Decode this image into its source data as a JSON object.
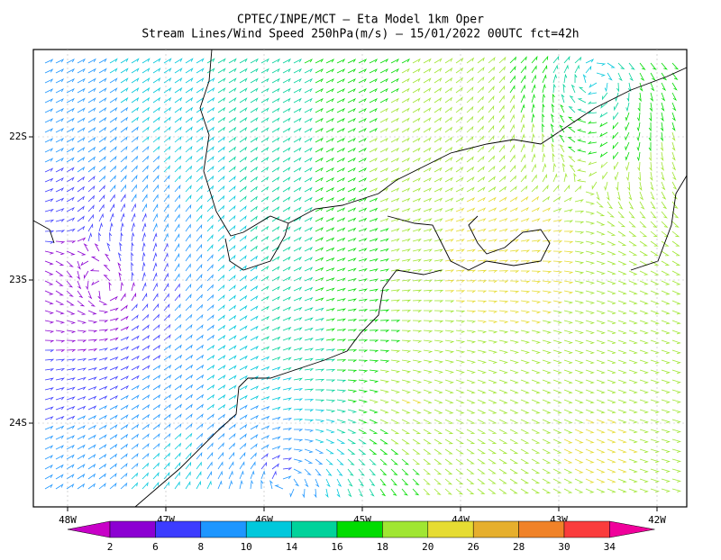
{
  "header": {
    "title": "CPTEC/INPE/MCT –  Eta Model 1km Oper",
    "subtitle": "Stream Lines/Wind Speed 250hPa(m/s) – 15/01/2022 00UTC fct=42h"
  },
  "map": {
    "lon_labels": [
      "48W",
      "47W",
      "46W",
      "45W",
      "44W",
      "43W",
      "42W"
    ],
    "lat_labels": [
      "22S",
      "23S",
      "24S"
    ]
  },
  "colorbar": {
    "labels": [
      "2",
      "6",
      "8",
      "10",
      "14",
      "16",
      "18",
      "20",
      "26",
      "28",
      "30",
      "34"
    ],
    "colors": [
      "#c800c8",
      "#8c00d2",
      "#3c3cff",
      "#1e96ff",
      "#00c8dc",
      "#00d29b",
      "#00dc00",
      "#a0e632",
      "#e6dc32",
      "#e6af2d",
      "#f08228",
      "#fa3c3c",
      "#f0009b"
    ]
  }
}
